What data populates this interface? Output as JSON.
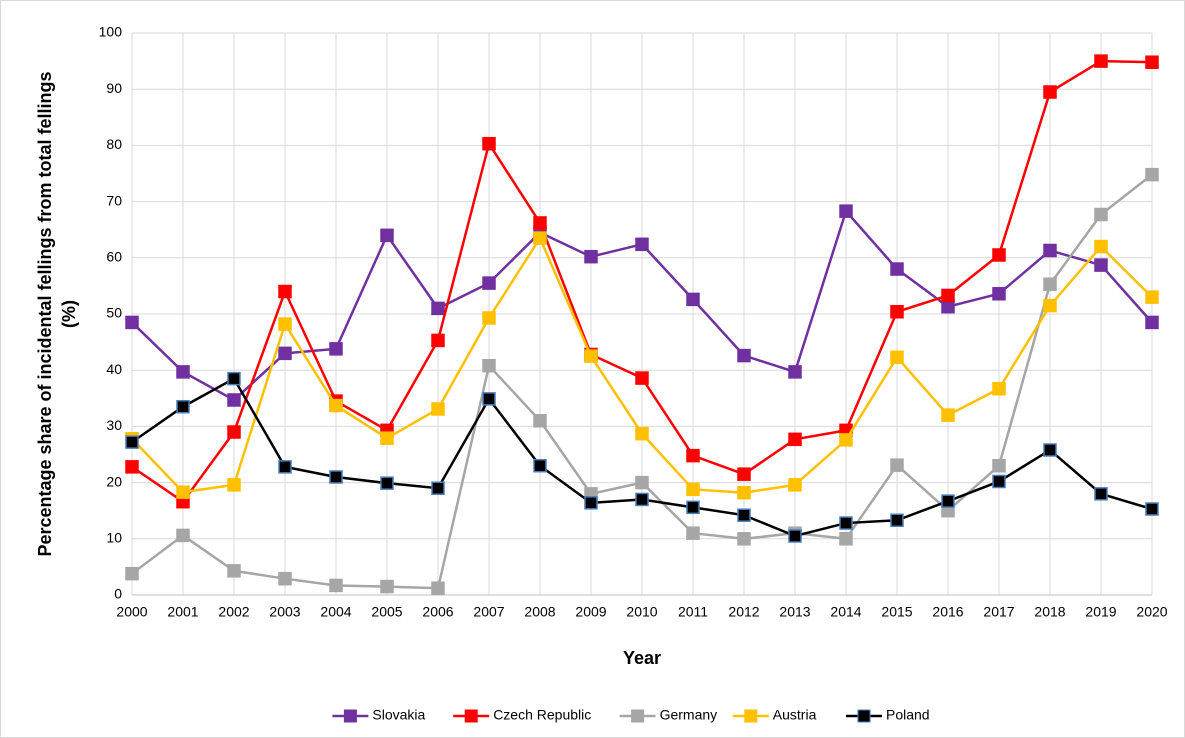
{
  "chart_data": {
    "type": "line",
    "xlabel": "Year",
    "ylabel": [
      "Percentage share of incidental fellings from total fellings",
      "(%)"
    ],
    "categories": [
      "2000",
      "2001",
      "2002",
      "2003",
      "2004",
      "2005",
      "2006",
      "2007",
      "2008",
      "2009",
      "2010",
      "2011",
      "2012",
      "2013",
      "2014",
      "2015",
      "2016",
      "2017",
      "2018",
      "2019",
      "2020"
    ],
    "ylim": [
      0,
      100
    ],
    "yticks": [
      0,
      10,
      20,
      30,
      40,
      50,
      60,
      70,
      80,
      90,
      100
    ],
    "grid": true,
    "series": [
      {
        "name": "Slovakia",
        "color": "#7030a0",
        "values": [
          48.5,
          39.7,
          34.7,
          43,
          43.8,
          64,
          51,
          55.5,
          64.5,
          60.2,
          62.4,
          52.6,
          42.6,
          39.7,
          68.3,
          58,
          51.3,
          53.6,
          61.3,
          58.7,
          48.5
        ]
      },
      {
        "name": "Czech Republic",
        "color": "#ff0000",
        "values": [
          22.8,
          16.6,
          29,
          54,
          34.5,
          29.3,
          45.3,
          80.3,
          66.2,
          42.8,
          38.6,
          24.8,
          21.5,
          27.7,
          29.3,
          50.4,
          53.3,
          60.5,
          89.5,
          95,
          94.8
        ]
      },
      {
        "name": "Germany",
        "color": "#a6a6a6",
        "values": [
          3.8,
          10.6,
          4.3,
          2.9,
          1.7,
          1.5,
          1.2,
          40.8,
          31,
          18,
          20,
          11,
          10,
          11,
          10,
          23.1,
          15,
          23,
          55.3,
          67.7,
          74.8
        ]
      },
      {
        "name": "Austria",
        "color": "#ffc000",
        "values": [
          27.8,
          18.3,
          19.6,
          48.2,
          33.7,
          27.9,
          33.1,
          49.3,
          63.5,
          42.5,
          28.7,
          18.8,
          18.2,
          19.6,
          27.6,
          42.3,
          32,
          36.7,
          51.5,
          62,
          53
        ]
      },
      {
        "name": "Poland",
        "color": "#000000",
        "values": [
          27.2,
          33.5,
          38.5,
          22.8,
          21,
          19.9,
          19,
          34.9,
          23,
          16.4,
          17,
          15.6,
          14.2,
          10.5,
          12.8,
          13.3,
          16.7,
          20.2,
          25.8,
          18,
          15.3
        ]
      }
    ]
  }
}
